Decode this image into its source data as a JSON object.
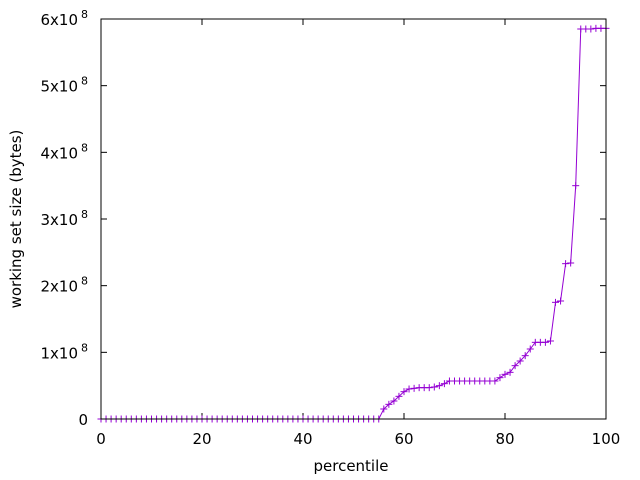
{
  "chart_data": {
    "type": "line",
    "xlabel": "percentile",
    "ylabel": "working set size (bytes)",
    "xlim": [
      0,
      100
    ],
    "ylim": [
      0,
      600000000
    ],
    "grid": false,
    "x_ticks": [
      {
        "value": 0,
        "label": "0"
      },
      {
        "value": 20,
        "label": "20"
      },
      {
        "value": 40,
        "label": "40"
      },
      {
        "value": 60,
        "label": "60"
      },
      {
        "value": 80,
        "label": "80"
      },
      {
        "value": 100,
        "label": "100"
      }
    ],
    "y_ticks": [
      {
        "value": 0,
        "mantissa": "0",
        "exponent": ""
      },
      {
        "value": 100000000,
        "mantissa": "1x10",
        "exponent": "8"
      },
      {
        "value": 200000000,
        "mantissa": "2x10",
        "exponent": "8"
      },
      {
        "value": 300000000,
        "mantissa": "3x10",
        "exponent": "8"
      },
      {
        "value": 400000000,
        "mantissa": "4x10",
        "exponent": "8"
      },
      {
        "value": 500000000,
        "mantissa": "5x10",
        "exponent": "8"
      },
      {
        "value": 600000000,
        "mantissa": "6x10",
        "exponent": "8"
      }
    ],
    "series": [
      {
        "color": "#9400d3",
        "marker": "+",
        "x": [
          0,
          1,
          2,
          3,
          4,
          5,
          6,
          7,
          8,
          9,
          10,
          11,
          12,
          13,
          14,
          15,
          16,
          17,
          18,
          19,
          20,
          21,
          22,
          23,
          24,
          25,
          26,
          27,
          28,
          29,
          30,
          31,
          32,
          33,
          34,
          35,
          36,
          37,
          38,
          39,
          40,
          41,
          42,
          43,
          44,
          45,
          46,
          47,
          48,
          49,
          50,
          51,
          52,
          53,
          54,
          55,
          56,
          57,
          58,
          59,
          60,
          61,
          62,
          63,
          64,
          65,
          66,
          67,
          68,
          69,
          70,
          71,
          72,
          73,
          74,
          75,
          76,
          77,
          78,
          79,
          80,
          81,
          82,
          83,
          84,
          85,
          86,
          87,
          88,
          89,
          90,
          91,
          92,
          93,
          94,
          95,
          96,
          97,
          98,
          99,
          100
        ],
        "y": [
          0,
          0,
          0,
          0,
          0,
          0,
          0,
          0,
          0,
          0,
          0,
          0,
          0,
          0,
          0,
          0,
          0,
          0,
          0,
          0,
          0,
          0,
          0,
          0,
          0,
          0,
          0,
          0,
          0,
          0,
          0,
          0,
          0,
          0,
          0,
          0,
          0,
          0,
          0,
          0,
          0,
          0,
          0,
          0,
          0,
          0,
          0,
          0,
          0,
          0,
          0,
          0,
          0,
          0,
          0,
          0,
          15000000,
          22000000,
          27000000,
          34000000,
          41000000,
          45000000,
          46000000,
          47000000,
          47000000,
          47000000,
          48000000,
          50000000,
          53000000,
          57000000,
          57000000,
          57000000,
          57000000,
          57000000,
          57000000,
          57000000,
          57000000,
          57000000,
          57000000,
          62000000,
          67000000,
          70000000,
          80000000,
          87000000,
          95000000,
          105000000,
          115000000,
          115000000,
          115000000,
          117000000,
          175000000,
          177000000,
          233000000,
          234000000,
          350000000,
          585000000,
          585000000,
          585000000,
          586000000,
          586000000,
          586000000
        ]
      }
    ]
  }
}
